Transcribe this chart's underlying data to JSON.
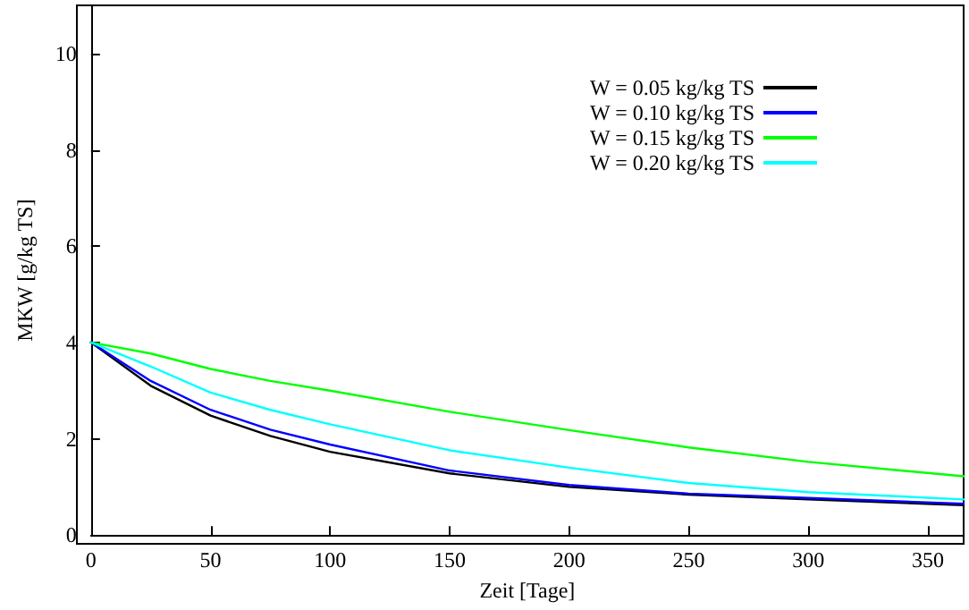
{
  "chart_data": {
    "type": "line",
    "xlabel": "Zeit [Tage]",
    "ylabel": "MKW [g/kg TS]",
    "x": [
      0,
      25,
      50,
      75,
      100,
      150,
      200,
      250,
      300,
      365
    ],
    "xlim": [
      0,
      365
    ],
    "xticks": [
      0,
      50,
      100,
      150,
      200,
      250,
      300,
      350
    ],
    "ylim": [
      0,
      11
    ],
    "yticks": [
      0,
      2,
      4,
      6,
      8,
      10
    ],
    "grid": false,
    "legend": "top right",
    "marker": "none",
    "line_style": "solid",
    "series": [
      {
        "name": "W = 0.05 kg/kg TS",
        "color": "#000000",
        "values": [
          4,
          3.1,
          2.48,
          2.06,
          1.73,
          1.28,
          1.0,
          0.84,
          0.74,
          0.62
        ]
      },
      {
        "name": "W = 0.10 kg/kg TS",
        "color": "#0000ff",
        "values": [
          4,
          3.2,
          2.6,
          2.19,
          1.88,
          1.34,
          1.04,
          0.86,
          0.77,
          0.65
        ]
      },
      {
        "name": "W = 0.15 kg/kg TS",
        "color": "#00ff00",
        "values": [
          4,
          3.77,
          3.45,
          3.2,
          3.0,
          2.56,
          2.18,
          1.82,
          1.52,
          1.22
        ]
      },
      {
        "name": "W = 0.20 kg/kg TS",
        "color": "#00ffff",
        "values": [
          4,
          3.5,
          2.96,
          2.6,
          2.3,
          1.76,
          1.4,
          1.08,
          0.89,
          0.74
        ]
      }
    ]
  }
}
